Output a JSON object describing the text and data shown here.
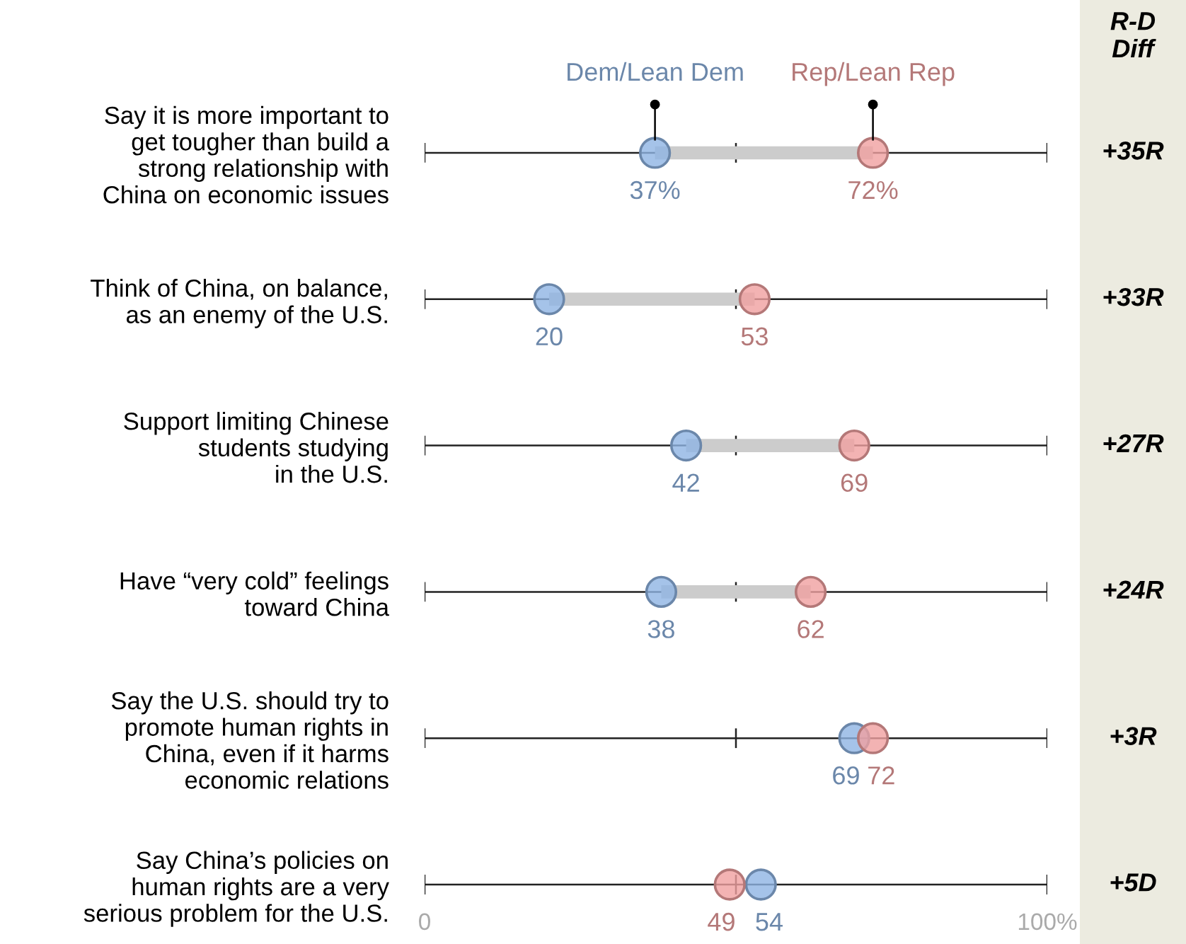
{
  "chart_data": [
    {
      "type": "scatter",
      "orientation": "horizontal",
      "categories": [
        "Say it is more important to\nget tougher than build a\nstrong relationship with\nChina on economic issues",
        "Think of China, on balance,\nas an enemy of the U.S.",
        "Support limiting Chinese\nstudents studying\nin the U.S.",
        "Have “very cold” feelings\ntoward China",
        "Say the U.S. should try to\npromote human rights in\nChina, even if it harms\neconomic relations",
        "Say China’s policies on\nhuman rights are a very\nserious problem for the U.S."
      ],
      "series": [
        {
          "type": "bar",
          "color": "#cccccc",
          "base": [
            37,
            20,
            42,
            38,
            null,
            null
          ],
          "values": [
            35,
            33,
            27,
            24,
            null,
            null
          ]
        },
        {
          "name": "Dem/Lean Dem",
          "color": "#8fb4e3",
          "values": [
            37,
            20,
            42,
            38,
            69,
            54
          ],
          "value_labels": [
            "37%",
            "20",
            "42",
            "38",
            "69",
            "54"
          ]
        },
        {
          "name": "Rep/Lean Rep",
          "color": "#f0a0a0",
          "values": [
            72,
            53,
            69,
            62,
            72,
            49
          ],
          "value_labels": [
            "72%",
            "53",
            "69",
            "62",
            "72",
            "49"
          ]
        }
      ],
      "xlim": [
        0,
        100
      ],
      "xticks": [
        {
          "value": 0,
          "label": "0"
        },
        {
          "value": 50,
          "label": null
        },
        {
          "value": 100,
          "label": "100%"
        }
      ],
      "grid": "y",
      "marker": "circle",
      "legend": false
    },
    {
      "type": "other",
      "title": "R-D\nDiff",
      "annotations": [
        "+35R",
        "+33R",
        "+27R",
        "+24R",
        "+3R",
        "+5D"
      ]
    }
  ]
}
